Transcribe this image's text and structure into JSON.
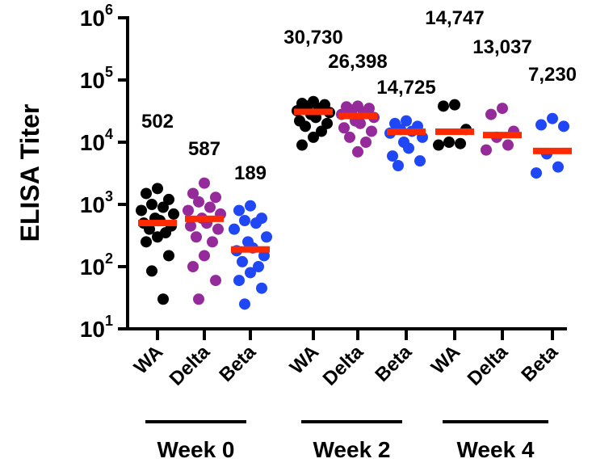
{
  "chart_data": {
    "type": "strip",
    "y_label": "ELISA Titer",
    "log_y": true,
    "ylim": [
      10,
      1000000
    ],
    "yticks": [
      {
        "value": 10,
        "label": "10",
        "exponent": "1"
      },
      {
        "value": 100,
        "label": "10",
        "exponent": "2"
      },
      {
        "value": 1000,
        "label": "10",
        "exponent": "3"
      },
      {
        "value": 10000,
        "label": "10",
        "exponent": "4"
      },
      {
        "value": 100000,
        "label": "10",
        "exponent": "5"
      },
      {
        "value": 1000000,
        "label": "10",
        "exponent": "6"
      }
    ],
    "categories": [
      "WA",
      "Delta",
      "Beta",
      "WA",
      "Delta",
      "Beta",
      "WA",
      "Delta",
      "Beta"
    ],
    "group_labels": [
      "Week 0",
      "Week 2",
      "Week 4"
    ],
    "colors": [
      "#000000",
      "#952a9b",
      "#1f47f5",
      "#000000",
      "#952a9b",
      "#1f47f5",
      "#000000",
      "#952a9b",
      "#1f47f5"
    ],
    "median_color": "#ff2a00",
    "points": [
      [
        1800,
        1500,
        1200,
        1000,
        900,
        800,
        700,
        600,
        550,
        500,
        450,
        400,
        350,
        300,
        250,
        150,
        85,
        30
      ],
      [
        2200,
        1500,
        1300,
        1100,
        900,
        800,
        700,
        600,
        500,
        450,
        400,
        300,
        250,
        150,
        100,
        60,
        30
      ],
      [
        950,
        800,
        600,
        550,
        500,
        400,
        300,
        250,
        200,
        180,
        150,
        120,
        100,
        80,
        60,
        45,
        25
      ],
      [
        45000,
        42000,
        40000,
        38000,
        35000,
        32000,
        30000,
        28000,
        25000,
        22000,
        20000,
        18000,
        15000,
        12000,
        9000
      ],
      [
        38000,
        37000,
        35000,
        33000,
        30000,
        28000,
        25000,
        22000,
        20000,
        17000,
        15000,
        12000,
        10000,
        7000
      ],
      [
        22000,
        20000,
        18000,
        16000,
        15000,
        14000,
        12000,
        10000,
        8000,
        6000,
        5000,
        4200
      ],
      [
        40000,
        38000,
        16000,
        10000,
        9500,
        9000
      ],
      [
        35000,
        28000,
        15000,
        12000,
        9000,
        7500
      ],
      [
        24000,
        19000,
        18000,
        6500,
        4000,
        3200
      ]
    ],
    "values": [
      502,
      587,
      189,
      30730,
      26398,
      14725,
      14747,
      13037,
      7230
    ],
    "value_labels": [
      "502",
      "587",
      "189",
      "30,730",
      "26,398",
      "14,725",
      "14,747",
      "13,037",
      "7,230"
    ]
  }
}
